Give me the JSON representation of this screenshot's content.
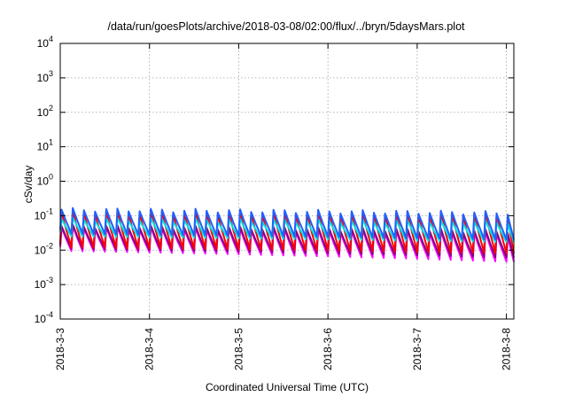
{
  "chart_data": {
    "type": "line",
    "title": "/data/run/goesPlots/archive/2018-03-08/02:00/flux/../bryn/5daysMars.plot",
    "xlabel": "Coordinated Universal Time (UTC)",
    "ylabel": "cSv/day",
    "y_scale": "log",
    "ylim": [
      0.0001,
      10000
    ],
    "y_ticks": [
      {
        "value": 0.0001,
        "base": "10",
        "exp": "-4"
      },
      {
        "value": 0.001,
        "base": "10",
        "exp": "-3"
      },
      {
        "value": 0.01,
        "base": "10",
        "exp": "-2"
      },
      {
        "value": 0.1,
        "base": "10",
        "exp": "-1"
      },
      {
        "value": 1,
        "base": "10",
        "exp": "0"
      },
      {
        "value": 10,
        "base": "10",
        "exp": "1"
      },
      {
        "value": 100,
        "base": "10",
        "exp": "2"
      },
      {
        "value": 1000,
        "base": "10",
        "exp": "3"
      },
      {
        "value": 10000,
        "base": "10",
        "exp": "4"
      }
    ],
    "xlim": [
      "2018-03-03 00:00",
      "2018-03-08 02:00"
    ],
    "x_ticks": [
      "2018-3-3",
      "2018-3-4",
      "2018-3-5",
      "2018-3-6",
      "2018-3-7",
      "2018-3-8"
    ],
    "grid": true,
    "pattern": {
      "period_hours": 3,
      "description": "sawtooth: sharp rise at each period start, then decay"
    },
    "series": [
      {
        "color": "#ff00ff",
        "peak_early": 0.045,
        "trough_early": 0.0095,
        "peak_late": 0.03,
        "trough_late": 0.0045
      },
      {
        "color": "#800080",
        "peak_early": 0.05,
        "trough_early": 0.011,
        "peak_late": 0.035,
        "trough_late": 0.006
      },
      {
        "color": "#ff0000",
        "peak_early": 0.13,
        "trough_early": 0.012,
        "peak_late": 0.11,
        "trough_late": 0.008
      },
      {
        "color": "#00e0e0",
        "peak_early": 0.08,
        "trough_early": 0.025,
        "peak_late": 0.065,
        "trough_late": 0.017
      },
      {
        "color": "#2060ff",
        "peak_early": 0.15,
        "trough_early": 0.03,
        "peak_late": 0.12,
        "trough_late": 0.02
      }
    ]
  }
}
